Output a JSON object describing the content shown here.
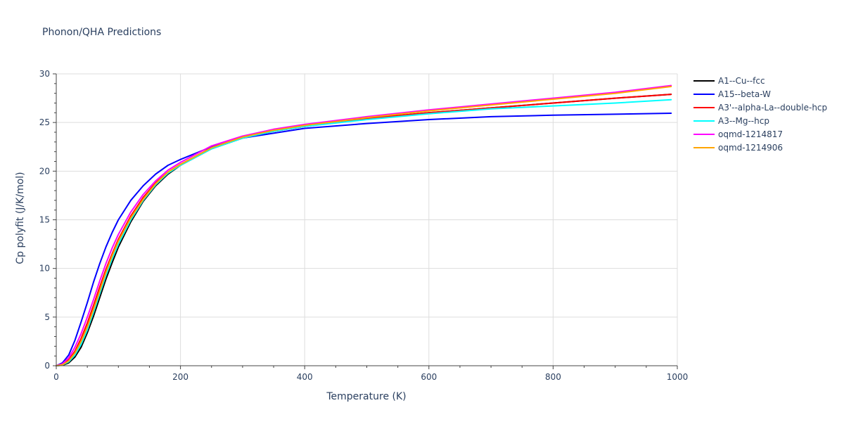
{
  "chart_data": {
    "type": "line",
    "title": "Phonon/QHA Predictions",
    "xlabel": "Temperature (K)",
    "ylabel": "Cp polyfit (J/K/mol)",
    "xlim": [
      0,
      1000
    ],
    "ylim": [
      0,
      30
    ],
    "xticks": [
      0,
      200,
      400,
      600,
      800,
      1000
    ],
    "yticks": [
      0,
      5,
      10,
      15,
      20,
      25,
      30
    ],
    "grid": true,
    "legend_position": "right",
    "x": [
      0,
      10,
      20,
      30,
      40,
      50,
      60,
      70,
      80,
      90,
      100,
      120,
      140,
      160,
      180,
      200,
      250,
      300,
      350,
      400,
      500,
      600,
      700,
      800,
      900,
      990
    ],
    "series": [
      {
        "name": "A1--Cu--fcc",
        "color": "#000000",
        "values": [
          0,
          0.05,
          0.3,
          0.9,
          1.9,
          3.4,
          5.1,
          7.0,
          8.9,
          10.6,
          12.2,
          14.8,
          16.9,
          18.5,
          19.7,
          20.6,
          22.3,
          23.4,
          24.1,
          24.6,
          25.4,
          26.0,
          26.5,
          27.0,
          27.5,
          27.9
        ]
      },
      {
        "name": "A15--beta-W",
        "color": "#0000ff",
        "values": [
          0,
          0.3,
          1.1,
          2.6,
          4.5,
          6.5,
          8.6,
          10.5,
          12.2,
          13.7,
          15.0,
          17.0,
          18.5,
          19.7,
          20.6,
          21.2,
          22.5,
          23.4,
          23.9,
          24.4,
          24.9,
          25.3,
          25.6,
          25.75,
          25.85,
          25.95
        ]
      },
      {
        "name": "A3'--alpha-La--double-hcp",
        "color": "#ff0000",
        "values": [
          0,
          0.15,
          0.6,
          1.5,
          2.8,
          4.4,
          6.2,
          8.1,
          9.9,
          11.5,
          13.0,
          15.4,
          17.3,
          18.8,
          19.9,
          20.7,
          22.4,
          23.4,
          24.1,
          24.6,
          25.4,
          26.0,
          26.5,
          27.0,
          27.5,
          27.9
        ]
      },
      {
        "name": "A3--Mg--hcp",
        "color": "#00ffff",
        "values": [
          0,
          0.08,
          0.4,
          1.1,
          2.2,
          3.7,
          5.5,
          7.4,
          9.3,
          11.0,
          12.5,
          15.0,
          17.0,
          18.6,
          19.8,
          20.6,
          22.3,
          23.4,
          24.1,
          24.6,
          25.3,
          25.9,
          26.4,
          26.7,
          27.0,
          27.35
        ]
      },
      {
        "name": "oqmd-1214817",
        "color": "#ff00ff",
        "values": [
          0,
          0.2,
          0.8,
          1.9,
          3.3,
          5.0,
          6.8,
          8.7,
          10.5,
          12.1,
          13.5,
          15.8,
          17.6,
          19.0,
          20.1,
          20.9,
          22.6,
          23.6,
          24.3,
          24.8,
          25.6,
          26.3,
          26.9,
          27.5,
          28.1,
          28.8
        ]
      },
      {
        "name": "oqmd-1214906",
        "color": "#ffa500",
        "values": [
          0,
          0.1,
          0.5,
          1.3,
          2.5,
          4.0,
          5.8,
          7.7,
          9.6,
          11.3,
          12.8,
          15.2,
          17.1,
          18.7,
          19.9,
          20.7,
          22.4,
          23.5,
          24.2,
          24.7,
          25.5,
          26.2,
          26.8,
          27.4,
          28.0,
          28.7
        ]
      }
    ]
  }
}
